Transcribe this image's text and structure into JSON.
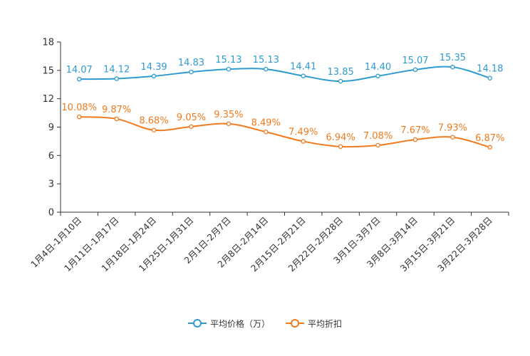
{
  "colors": {
    "series1": "#2f9bd0",
    "series2": "#f07b1e",
    "axis": "#333333",
    "tick_text": "#333333"
  },
  "chart_data": {
    "type": "line",
    "categories": [
      "1月4日-1月10日",
      "1月11日-1月17日",
      "1月18日-1月24日",
      "1月25日-1月31日",
      "2月1日-2月7日",
      "2月8日-2月14日",
      "2月15日-2月21日",
      "2月22日-2月28日",
      "3月1日-3月7日",
      "3月8日-3月14日",
      "3月15日-3月21日",
      "3月22日-3月28日"
    ],
    "ylim": [
      0,
      18
    ],
    "yticks": [
      0,
      3,
      6,
      9,
      12,
      15,
      18
    ],
    "series": [
      {
        "name": "平均价格（万）",
        "color": "#2f9bd0",
        "values": [
          14.07,
          14.12,
          14.39,
          14.83,
          15.13,
          15.13,
          14.41,
          13.85,
          14.4,
          15.07,
          15.35,
          14.18
        ],
        "labels": [
          "14.07",
          "14.12",
          "14.39",
          "14.83",
          "15.13",
          "15.13",
          "14.41",
          "13.85",
          "14.40",
          "15.07",
          "15.35",
          "14.18"
        ]
      },
      {
        "name": "平均折扣",
        "color": "#f07b1e",
        "values": [
          10.08,
          9.87,
          8.68,
          9.05,
          9.35,
          8.49,
          7.49,
          6.94,
          7.08,
          7.67,
          7.93,
          6.87
        ],
        "labels": [
          "10.08%",
          "9.87%",
          "8.68%",
          "9.05%",
          "9.35%",
          "8.49%",
          "7.49%",
          "6.94%",
          "7.08%",
          "7.67%",
          "7.93%",
          "6.87%"
        ]
      }
    ],
    "grid": false,
    "legend_position": "bottom-center",
    "smooth": true
  }
}
